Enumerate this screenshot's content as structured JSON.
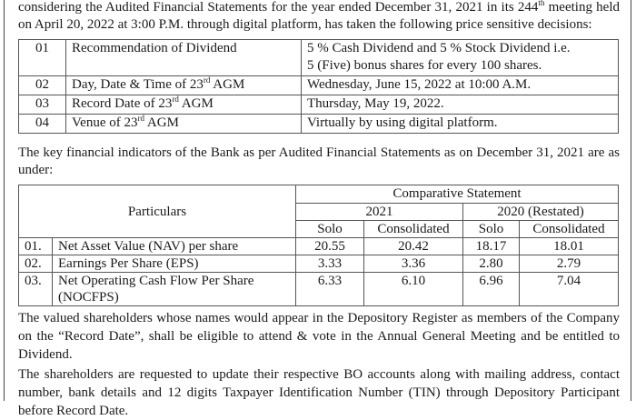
{
  "intro": {
    "line1_pre": "considering the Audited Financial Statements for the year ended December 31, 2021 in its 244",
    "line1_sup": "th",
    "line1_post": " meeting held on April 20, 2022 at 3:00 P.M. through digital platform, has taken the following price sensitive decisions:"
  },
  "decisions": [
    {
      "no": "01",
      "item": "Recommendation of Dividend",
      "item_sup": "",
      "item_post": "",
      "detail_1": "5 % Cash Dividend and  5 % Stock Dividend i.e.",
      "detail_2": "5  (Five) bonus shares for every 100 shares."
    },
    {
      "no": "02",
      "item": "Day, Date & Time of 23",
      "item_sup": "rd",
      "item_post": " AGM",
      "detail_1": "Wednesday, June 15, 2022 at 10:00 A.M."
    },
    {
      "no": "03",
      "item": "Record Date of 23",
      "item_sup": "rd",
      "item_post": " AGM",
      "detail_1": "Thursday, May 19, 2022."
    },
    {
      "no": "04",
      "item": "Venue of 23",
      "item_sup": "rd",
      "item_post": " AGM",
      "detail_1": "Virtually by using digital platform."
    }
  ],
  "indicators_intro": "The key financial indicators of the Bank as per Audited Financial Statements as on December 31, 2021 are as under:",
  "indicators": {
    "particulars_header": "Particulars",
    "group_header": "Comparative Statement",
    "years": [
      "2021",
      "2020 (Restated)"
    ],
    "sub_headers": [
      "Solo",
      "Consolidated",
      "Solo",
      "Consolidated"
    ],
    "rows": [
      {
        "no": "01.",
        "label": "Net Asset Value (NAV) per share",
        "values": [
          "20.55",
          "20.42",
          "18.17",
          "18.01"
        ]
      },
      {
        "no": "02.",
        "label": "Earnings Per Share (EPS)",
        "values": [
          "3.33",
          "3.36",
          "2.80",
          "2.79"
        ]
      },
      {
        "no": "03.",
        "label": "Net Operating Cash Flow Per Share (NOCFPS)",
        "values": [
          "6.33",
          "6.10",
          "6.96",
          "7.04"
        ]
      }
    ]
  },
  "paragraph_record_date": "The valued shareholders whose names would appear in the Depository Register as members of the Company on the “Record Date”, shall be eligible to attend & vote in the Annual General Meeting and be entitled to Dividend.",
  "paragraph_bo_update": "The shareholders are requested to update their respective BO accounts along with mailing address, contact number, bank details and 12 digits Taxpayer Identification Number (TIN) through Depository Participant before Record Date."
}
